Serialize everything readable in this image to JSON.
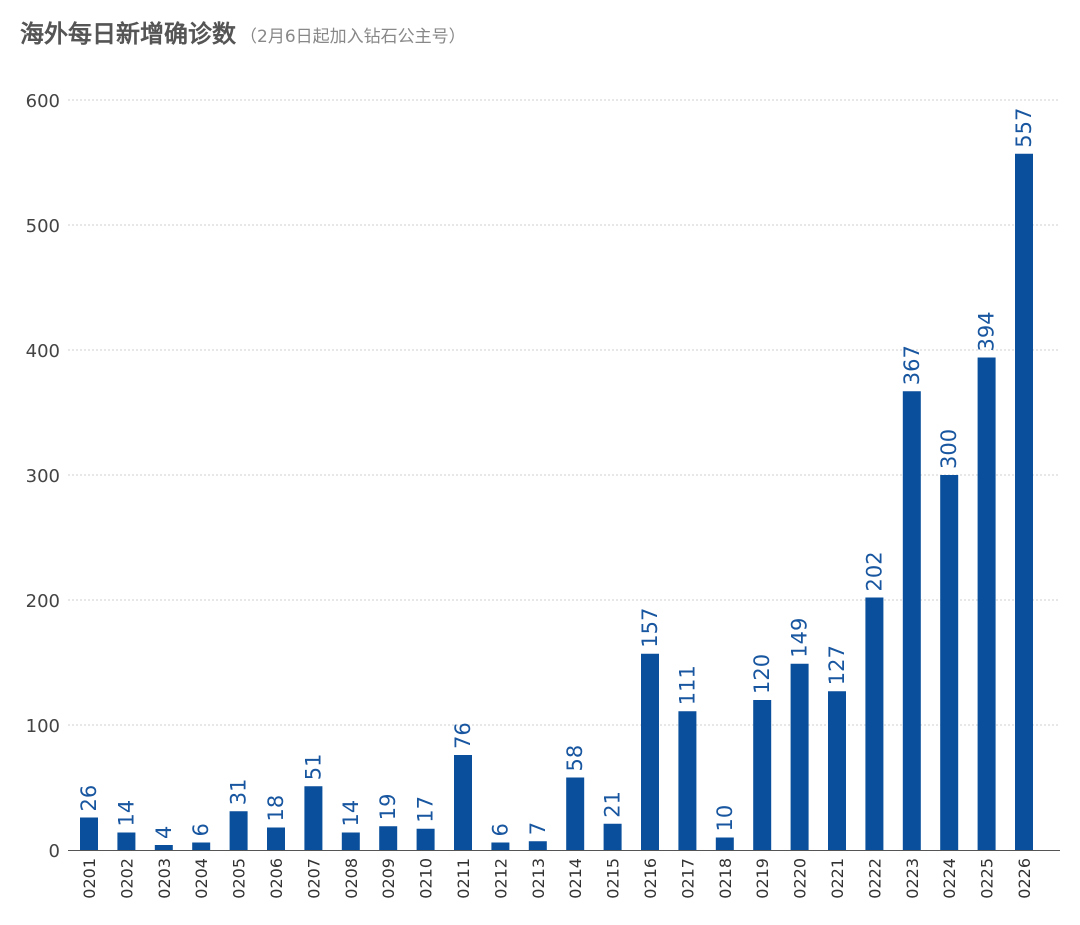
{
  "title": "海外每日新增确诊数",
  "subtitle": "（2月6日起加入钻石公主号）",
  "colors": {
    "bar": "#0a4f9c",
    "label": "#1856a0",
    "grid": "#cfcfcf",
    "axis": "#555555"
  },
  "chart_data": {
    "type": "bar",
    "categories": [
      "0201",
      "0202",
      "0203",
      "0204",
      "0205",
      "0206",
      "0207",
      "0208",
      "0209",
      "0210",
      "0211",
      "0212",
      "0213",
      "0214",
      "0215",
      "0216",
      "0217",
      "0218",
      "0219",
      "0220",
      "0221",
      "0222",
      "0223",
      "0224",
      "0225",
      "0226"
    ],
    "values": [
      26,
      14,
      4,
      6,
      31,
      18,
      51,
      14,
      19,
      17,
      76,
      6,
      7,
      58,
      21,
      157,
      111,
      10,
      120,
      149,
      127,
      202,
      367,
      300,
      394,
      557
    ],
    "ylim": [
      0,
      600
    ],
    "yticks": [
      0,
      100,
      200,
      300,
      400,
      500,
      600
    ],
    "grid": true,
    "data_labels": true,
    "xlabel": "",
    "ylabel": ""
  }
}
